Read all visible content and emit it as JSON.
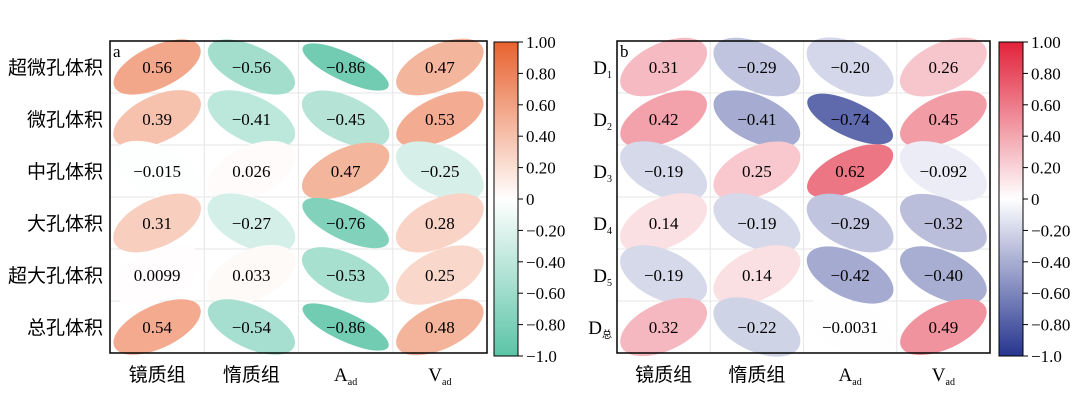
{
  "chart_data": [
    {
      "type": "heatmap",
      "panel_label": "a",
      "rows": [
        "超微孔体积",
        "微孔体积",
        "中孔体积",
        "大孔体积",
        "超大孔体积",
        "总孔体积"
      ],
      "columns": [
        {
          "base": "镜质组",
          "sub": ""
        },
        {
          "base": "惰质组",
          "sub": ""
        },
        {
          "base": "A",
          "sub": "ad"
        },
        {
          "base": "V",
          "sub": "ad"
        }
      ],
      "values": [
        [
          0.56,
          -0.56,
          -0.86,
          0.47
        ],
        [
          0.39,
          -0.41,
          -0.45,
          0.53
        ],
        [
          -0.015,
          0.026,
          0.47,
          -0.25
        ],
        [
          0.31,
          -0.27,
          -0.76,
          0.28
        ],
        [
          0.0099,
          0.033,
          -0.53,
          0.25
        ],
        [
          0.54,
          -0.54,
          -0.86,
          0.48
        ]
      ],
      "labels": [
        [
          "0.56",
          "−0.56",
          "−0.86",
          "0.47"
        ],
        [
          "0.39",
          "−0.41",
          "−0.45",
          "0.53"
        ],
        [
          "−0.015",
          "0.026",
          "0.47",
          "−0.25"
        ],
        [
          "0.31",
          "−0.27",
          "−0.76",
          "0.28"
        ],
        [
          "0.0099",
          "0.033",
          "−0.53",
          "0.25"
        ],
        [
          "0.54",
          "−0.54",
          "−0.86",
          "0.48"
        ]
      ],
      "colorbar": {
        "range": [
          -1.0,
          1.0
        ],
        "ticks": [
          "1.00",
          "0.80",
          "0.60",
          "0.40",
          "0.20",
          "0",
          "−0.20",
          "−0.40",
          "−0.60",
          "−0.80",
          "−1.0"
        ],
        "positive_color": "#e8622f",
        "negative_color": "#5bc4a6"
      }
    },
    {
      "type": "heatmap",
      "panel_label": "b",
      "rows": [
        {
          "base": "D",
          "sub": "1"
        },
        {
          "base": "D",
          "sub": "2"
        },
        {
          "base": "D",
          "sub": "3"
        },
        {
          "base": "D",
          "sub": "4"
        },
        {
          "base": "D",
          "sub": "5"
        },
        {
          "base": "D",
          "sub": "总"
        }
      ],
      "columns": [
        {
          "base": "镜质组",
          "sub": ""
        },
        {
          "base": "惰质组",
          "sub": ""
        },
        {
          "base": "A",
          "sub": "ad"
        },
        {
          "base": "V",
          "sub": "ad"
        }
      ],
      "values": [
        [
          0.31,
          -0.29,
          -0.2,
          0.26
        ],
        [
          0.42,
          -0.41,
          -0.74,
          0.45
        ],
        [
          -0.19,
          0.25,
          0.62,
          -0.092
        ],
        [
          0.14,
          -0.19,
          -0.29,
          -0.32
        ],
        [
          -0.19,
          0.14,
          -0.42,
          -0.4
        ],
        [
          0.32,
          -0.22,
          -0.0031,
          0.49
        ]
      ],
      "labels": [
        [
          "0.31",
          "−0.29",
          "−0.20",
          "0.26"
        ],
        [
          "0.42",
          "−0.41",
          "−0.74",
          "0.45"
        ],
        [
          "−0.19",
          "0.25",
          "0.62",
          "−0.092"
        ],
        [
          "0.14",
          "−0.19",
          "−0.29",
          "−0.32"
        ],
        [
          "−0.19",
          "0.14",
          "−0.42",
          "−0.40"
        ],
        [
          "0.32",
          "−0.22",
          "−0.0031",
          "0.49"
        ]
      ],
      "colorbar": {
        "range": [
          -1.0,
          1.0
        ],
        "ticks": [
          "1.00",
          "0.80",
          "0.60",
          "0.40",
          "0.20",
          "0",
          "−0.20",
          "−0.40",
          "−0.60",
          "−0.80",
          "−1.0"
        ],
        "positive_color": "#e2223a",
        "negative_color": "#26358f"
      }
    }
  ]
}
